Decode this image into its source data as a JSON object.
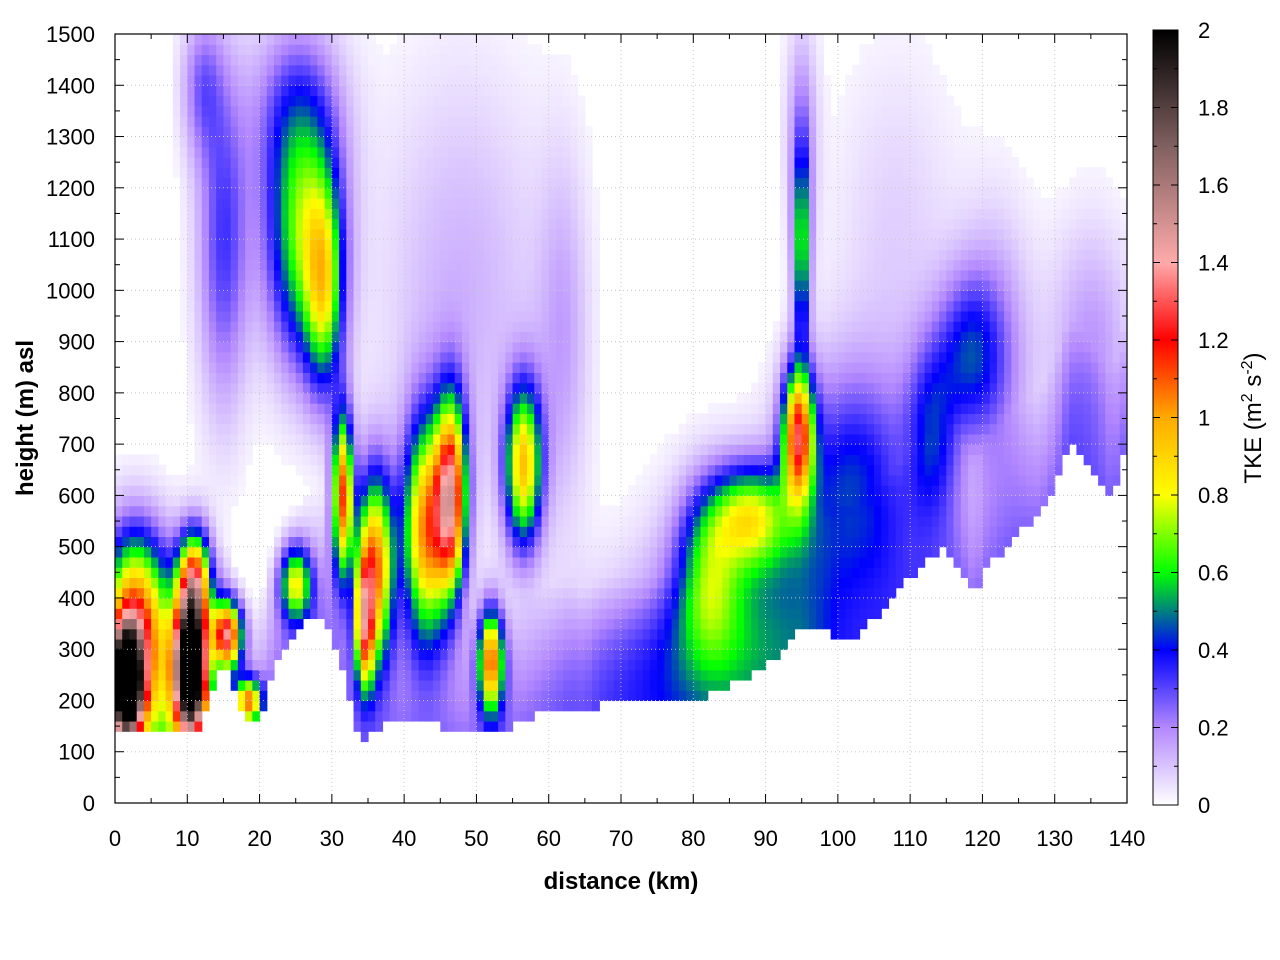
{
  "chart_data": {
    "type": "heatmap",
    "title": "",
    "xlabel": "distance (km)",
    "ylabel": "height (m) asl",
    "colorbar_label": {
      "text": "TKE (m",
      "sup1": "2",
      "mid": " s",
      "sup2": "-2",
      "end": ")"
    },
    "xlim": [
      0,
      140
    ],
    "ylim": [
      0,
      1500
    ],
    "clim": [
      0,
      2
    ],
    "x_ticks": [
      0,
      10,
      20,
      30,
      40,
      50,
      60,
      70,
      80,
      90,
      100,
      110,
      120,
      130,
      140
    ],
    "y_ticks": [
      0,
      100,
      200,
      300,
      400,
      500,
      600,
      700,
      800,
      900,
      1000,
      1100,
      1200,
      1300,
      1400,
      1500
    ],
    "colorbar_ticks": [
      0,
      0.2,
      0.4,
      0.6,
      0.8,
      1,
      1.2,
      1.4,
      1.6,
      1.8,
      2
    ],
    "grid": true,
    "colormap": [
      {
        "value": 0.0,
        "color": "#ffffff"
      },
      {
        "value": 0.2,
        "color": "#b388ff"
      },
      {
        "value": 0.4,
        "color": "#0000ff"
      },
      {
        "value": 0.6,
        "color": "#00ff00"
      },
      {
        "value": 0.8,
        "color": "#ffff00"
      },
      {
        "value": 1.0,
        "color": "#ffaa00"
      },
      {
        "value": 1.2,
        "color": "#ff0000"
      },
      {
        "value": 1.4,
        "color": "#ffaaaa"
      },
      {
        "value": 1.7,
        "color": "#806060"
      },
      {
        "value": 2.0,
        "color": "#000000"
      }
    ],
    "terrain": {
      "x": [
        0,
        1,
        2,
        4,
        6,
        8,
        10,
        11,
        12,
        13,
        15,
        17,
        19,
        20,
        21,
        23,
        25,
        27,
        29,
        30,
        31,
        32,
        33,
        34,
        35,
        37,
        40,
        45,
        50,
        55,
        60,
        63,
        65,
        67,
        70,
        75,
        80,
        85,
        90,
        93,
        95,
        98,
        100,
        103,
        105,
        108,
        110,
        112,
        115,
        117,
        119,
        120,
        122,
        125,
        128,
        130,
        132,
        135,
        138,
        140
      ],
      "y": [
        140,
        130,
        150,
        145,
        140,
        150,
        145,
        140,
        150,
        200,
        280,
        200,
        150,
        160,
        220,
        300,
        340,
        370,
        360,
        330,
        280,
        230,
        170,
        100,
        130,
        150,
        155,
        150,
        135,
        150,
        180,
        190,
        165,
        190,
        195,
        190,
        200,
        230,
        270,
        310,
        350,
        340,
        310,
        330,
        360,
        410,
        440,
        480,
        500,
        460,
        400,
        450,
        480,
        530,
        560,
        620,
        700,
        650,
        600,
        700
      ]
    },
    "blobs": [
      {
        "x": 1.5,
        "y": 230,
        "sx": 1.6,
        "sy": 75,
        "v": 2.4
      },
      {
        "x": 2.5,
        "y": 380,
        "sx": 3.0,
        "sy": 110,
        "v": 0.9
      },
      {
        "x": 10.5,
        "y": 260,
        "sx": 1.5,
        "sy": 90,
        "v": 2.5
      },
      {
        "x": 11.0,
        "y": 430,
        "sx": 1.6,
        "sy": 70,
        "v": 1.1
      },
      {
        "x": 15.5,
        "y": 330,
        "sx": 1.4,
        "sy": 45,
        "v": 1.2
      },
      {
        "x": 18.5,
        "y": 200,
        "sx": 1.2,
        "sy": 30,
        "v": 0.9
      },
      {
        "x": 6.0,
        "y": 250,
        "sx": 3.0,
        "sy": 140,
        "v": 0.5
      },
      {
        "x": 15.0,
        "y": 1100,
        "sx": 2.5,
        "sy": 230,
        "v": 0.32
      },
      {
        "x": 12.0,
        "y": 1400,
        "sx": 2.0,
        "sy": 100,
        "v": 0.22
      },
      {
        "x": 26.0,
        "y": 1100,
        "sx": 3.5,
        "sy": 170,
        "v": 0.65
      },
      {
        "x": 29.0,
        "y": 1000,
        "sx": 1.8,
        "sy": 140,
        "v": 0.55
      },
      {
        "x": 25.0,
        "y": 1350,
        "sx": 4.5,
        "sy": 130,
        "v": 0.25
      },
      {
        "x": 25.0,
        "y": 430,
        "sx": 1.5,
        "sy": 50,
        "v": 0.7
      },
      {
        "x": 31.5,
        "y": 600,
        "sx": 1.0,
        "sy": 110,
        "v": 1.1
      },
      {
        "x": 36.0,
        "y": 460,
        "sx": 1.8,
        "sy": 130,
        "v": 1.05
      },
      {
        "x": 34.5,
        "y": 350,
        "sx": 0.9,
        "sy": 90,
        "v": 0.9
      },
      {
        "x": 43.0,
        "y": 530,
        "sx": 2.2,
        "sy": 150,
        "v": 1.0
      },
      {
        "x": 46.5,
        "y": 600,
        "sx": 1.5,
        "sy": 130,
        "v": 1.2
      },
      {
        "x": 52.0,
        "y": 280,
        "sx": 1.2,
        "sy": 70,
        "v": 1.0
      },
      {
        "x": 56.5,
        "y": 660,
        "sx": 1.8,
        "sy": 110,
        "v": 0.9
      },
      {
        "x": 62.0,
        "y": 900,
        "sx": 2.5,
        "sy": 250,
        "v": 0.14
      },
      {
        "x": 95.0,
        "y": 1080,
        "sx": 0.8,
        "sy": 130,
        "v": 0.6
      },
      {
        "x": 95.0,
        "y": 1300,
        "sx": 1.5,
        "sy": 150,
        "v": 0.2
      },
      {
        "x": 94.5,
        "y": 720,
        "sx": 1.5,
        "sy": 90,
        "v": 1.1
      },
      {
        "x": 88.0,
        "y": 560,
        "sx": 4.0,
        "sy": 70,
        "v": 0.65
      },
      {
        "x": 82.0,
        "y": 450,
        "sx": 3.0,
        "sy": 110,
        "v": 0.4
      },
      {
        "x": 102.0,
        "y": 620,
        "sx": 6.0,
        "sy": 160,
        "v": 0.42
      },
      {
        "x": 87.0,
        "y": 400,
        "sx": 8.0,
        "sy": 150,
        "v": 0.28
      },
      {
        "x": 78.0,
        "y": 280,
        "sx": 12.0,
        "sy": 120,
        "v": 0.18
      },
      {
        "x": 113.0,
        "y": 740,
        "sx": 2.5,
        "sy": 120,
        "v": 0.32
      },
      {
        "x": 118.0,
        "y": 880,
        "sx": 3.0,
        "sy": 110,
        "v": 0.32
      },
      {
        "x": 122.0,
        "y": 850,
        "sx": 3.5,
        "sy": 200,
        "v": 0.2
      },
      {
        "x": 135.0,
        "y": 880,
        "sx": 4.0,
        "sy": 170,
        "v": 0.18
      },
      {
        "x": 48.0,
        "y": 1000,
        "sx": 8.0,
        "sy": 300,
        "v": 0.13
      },
      {
        "x": 108.0,
        "y": 1100,
        "sx": 6.0,
        "sy": 250,
        "v": 0.08
      }
    ]
  }
}
